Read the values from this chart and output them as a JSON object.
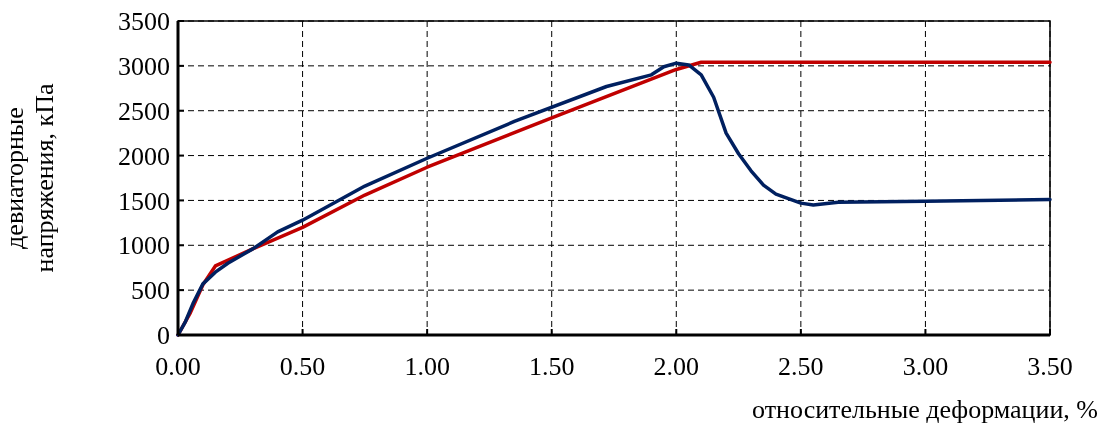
{
  "chart_data": {
    "type": "line",
    "xlabel": "относительные деформации, %",
    "ylabel": "девиаторные\nнапряжения, кПа",
    "xlim": [
      0,
      3.5
    ],
    "ylim": [
      0,
      3500
    ],
    "xticks": [
      {
        "value": 0,
        "label": "0.00"
      },
      {
        "value": 0.5,
        "label": "0.50"
      },
      {
        "value": 1,
        "label": "1.00"
      },
      {
        "value": 1.5,
        "label": "1.50"
      },
      {
        "value": 2,
        "label": "2.00"
      },
      {
        "value": 2.5,
        "label": "2.50"
      },
      {
        "value": 3,
        "label": "3.00"
      },
      {
        "value": 3.5,
        "label": "3.50"
      }
    ],
    "yticks": [
      0,
      500,
      1000,
      1500,
      2000,
      2500,
      3000,
      3500
    ],
    "grid": true,
    "line_style": "solid",
    "series": [
      {
        "color": "#c00000",
        "x": [
          0,
          0.05,
          0.1,
          0.15,
          0.3,
          0.5,
          0.75,
          1.0,
          1.5,
          2.0,
          2.1,
          3.5
        ],
        "values": [
          0,
          250,
          560,
          770,
          960,
          1200,
          1560,
          1870,
          2420,
          2960,
          3040,
          3040
        ]
      },
      {
        "color": "#002060",
        "x": [
          0,
          0.03,
          0.06,
          0.1,
          0.15,
          0.2,
          0.3,
          0.4,
          0.5,
          0.75,
          1.0,
          1.35,
          1.72,
          1.9,
          1.95,
          2.0,
          2.05,
          2.1,
          2.15,
          2.2,
          2.25,
          2.3,
          2.35,
          2.4,
          2.5,
          2.55,
          2.65,
          3.0,
          3.5
        ],
        "values": [
          0,
          150,
          350,
          570,
          700,
          800,
          960,
          1150,
          1280,
          1660,
          1970,
          2380,
          2770,
          2900,
          2990,
          3030,
          3010,
          2900,
          2650,
          2250,
          2020,
          1830,
          1670,
          1570,
          1470,
          1450,
          1480,
          1490,
          1510
        ]
      }
    ]
  }
}
